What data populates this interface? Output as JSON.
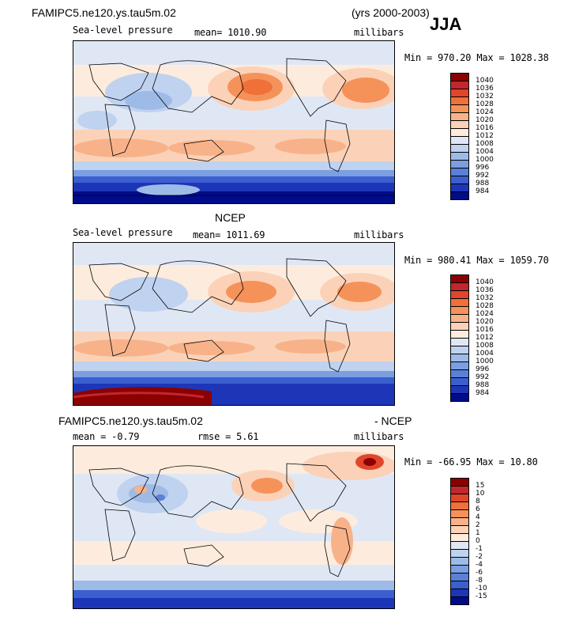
{
  "header": {
    "case_name": "FAMIPC5.ne120.ys.tau5m.02",
    "years": "(yrs 2000-2003)",
    "season": "JJA"
  },
  "panels": [
    {
      "id": "model",
      "title_left": "FAMIPC5.ne120.ys.tau5m.02",
      "title_center": "",
      "title_right": "",
      "field": "Sea-level pressure",
      "stat_text": "mean= 1010.90",
      "units": "millibars",
      "minmax": "Min = 970.20  Max = 1028.38"
    },
    {
      "id": "obs",
      "title_left": "",
      "title_center": "NCEP",
      "title_right": "",
      "field": "Sea-level pressure",
      "stat_text": "mean= 1011.69",
      "units": "millibars",
      "minmax": "Min = 980.41  Max = 1059.70"
    },
    {
      "id": "diff",
      "title_left": "FAMIPC5.ne120.ys.tau5m.02",
      "title_center": "",
      "title_right": "- NCEP",
      "field": "mean =   -0.79",
      "stat_text": "rmse =    5.61",
      "units": "millibars",
      "minmax": "Min = -66.95  Max =  10.80"
    }
  ],
  "chart_data": [
    {
      "type": "heatmap",
      "title": "FAMIPC5.ne120.ys.tau5m.02",
      "subtitle": "Sea-level pressure",
      "units": "millibars",
      "mean": 1010.9,
      "min": 970.2,
      "max": 1028.38,
      "legend_levels": [
        "1040",
        "1036",
        "1032",
        "1028",
        "1024",
        "1020",
        "1016",
        "1012",
        "1008",
        "1004",
        "1000",
        "996",
        "992",
        "988",
        "984"
      ],
      "legend_colors": [
        "#8b0000",
        "#c1272d",
        "#e0462a",
        "#f0703a",
        "#f5925a",
        "#f8b28a",
        "#fbd2b8",
        "#fdecdd",
        "#dfe7f5",
        "#bfd2ef",
        "#9ebbe8",
        "#7b9fe0",
        "#5a80d8",
        "#3b5fcf",
        "#1d36b8",
        "#000c8a"
      ],
      "legend_position": "right"
    },
    {
      "type": "heatmap",
      "title": "NCEP",
      "subtitle": "Sea-level pressure",
      "units": "millibars",
      "mean": 1011.69,
      "min": 980.41,
      "max": 1059.7,
      "legend_levels": [
        "1040",
        "1036",
        "1032",
        "1028",
        "1024",
        "1020",
        "1016",
        "1012",
        "1008",
        "1004",
        "1000",
        "996",
        "992",
        "988",
        "984"
      ],
      "legend_colors": [
        "#8b0000",
        "#c1272d",
        "#e0462a",
        "#f0703a",
        "#f5925a",
        "#f8b28a",
        "#fbd2b8",
        "#fdecdd",
        "#dfe7f5",
        "#bfd2ef",
        "#9ebbe8",
        "#7b9fe0",
        "#5a80d8",
        "#3b5fcf",
        "#1d36b8",
        "#000c8a"
      ],
      "legend_position": "right"
    },
    {
      "type": "heatmap",
      "title": "FAMIPC5.ne120.ys.tau5m.02 - NCEP",
      "units": "millibars",
      "mean": -0.79,
      "rmse": 5.61,
      "min": -66.95,
      "max": 10.8,
      "legend_levels": [
        "15",
        "10",
        "8",
        "6",
        "4",
        "2",
        "1",
        "0",
        "-1",
        "-2",
        "-4",
        "-6",
        "-8",
        "-10",
        "-15"
      ],
      "legend_colors": [
        "#8b0000",
        "#c1272d",
        "#e0462a",
        "#f0703a",
        "#f5925a",
        "#f8b28a",
        "#fbd2b8",
        "#fdecdd",
        "#dfe7f5",
        "#bfd2ef",
        "#9ebbe8",
        "#7b9fe0",
        "#5a80d8",
        "#3b5fcf",
        "#1d36b8",
        "#000c8a"
      ],
      "legend_position": "right"
    }
  ]
}
